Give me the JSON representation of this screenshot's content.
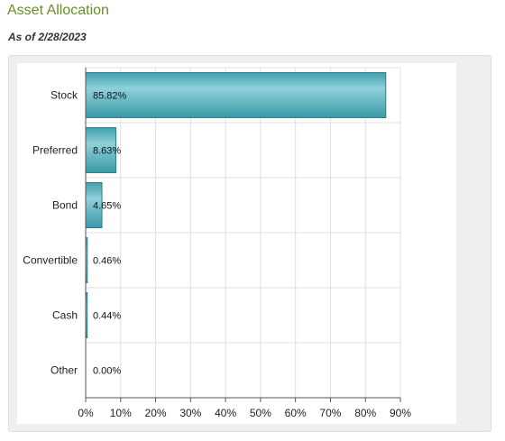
{
  "header": {
    "title": "Asset Allocation",
    "as_of": "As of 2/28/2023"
  },
  "colors": {
    "title": "#6b8e23",
    "bar_fill": "#4aaab8",
    "bar_highlight": "#8fd0da",
    "bar_stroke": "#2f7f8c",
    "grid": "#e0e0e0"
  },
  "chart_data": {
    "type": "bar",
    "orientation": "horizontal",
    "categories": [
      "Stock",
      "Preferred",
      "Bond",
      "Convertible",
      "Cash",
      "Other"
    ],
    "values": [
      85.82,
      8.63,
      4.65,
      0.46,
      0.44,
      0.0
    ],
    "data_labels": [
      "85.82%",
      "8.63%",
      "4.65%",
      "0.46%",
      "0.44%",
      "0.00%"
    ],
    "xlim": [
      0,
      90
    ],
    "xticks": [
      0,
      10,
      20,
      30,
      40,
      50,
      60,
      70,
      80,
      90
    ],
    "xtick_labels": [
      "0%",
      "10%",
      "20%",
      "30%",
      "40%",
      "50%",
      "60%",
      "70%",
      "80%",
      "90%"
    ],
    "grid": true,
    "legend": "none"
  }
}
